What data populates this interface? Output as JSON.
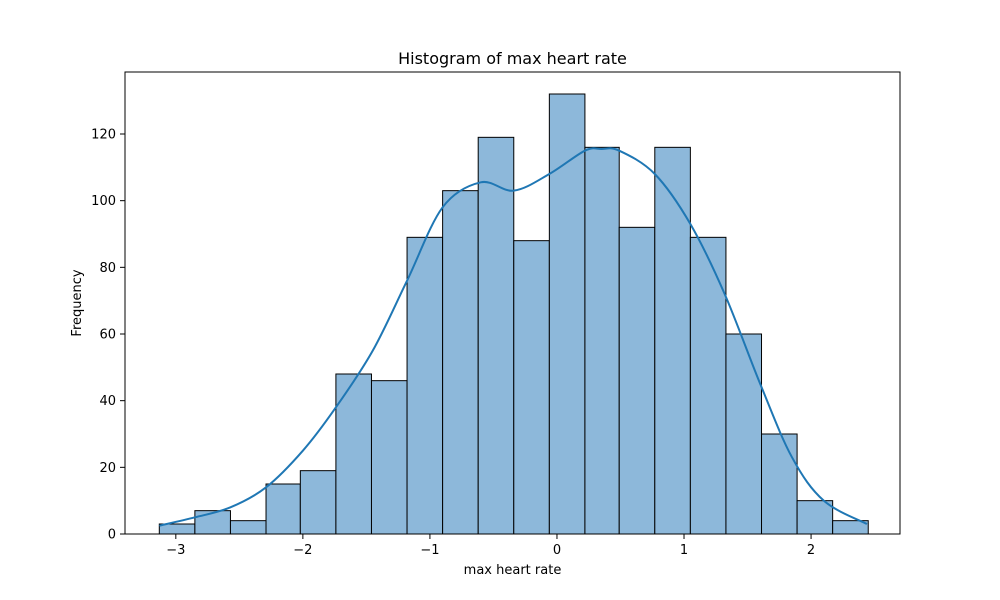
{
  "chart_data": {
    "type": "bar",
    "title": "Histogram of max heart rate",
    "xlabel": "max heart rate",
    "ylabel": "Frequency",
    "xlim": [
      -3.4,
      2.7
    ],
    "ylim": [
      0,
      138.6
    ],
    "bin_edges": [
      -3.13,
      -2.85,
      -2.57,
      -2.29,
      -2.02,
      -1.74,
      -1.46,
      -1.18,
      -0.9,
      -0.62,
      -0.34,
      -0.06,
      0.22,
      0.49,
      0.77,
      1.05,
      1.33,
      1.61,
      1.89,
      2.17,
      2.45
    ],
    "values": [
      3,
      7,
      4,
      15,
      19,
      48,
      46,
      89,
      103,
      119,
      88,
      132,
      116,
      92,
      116,
      89,
      60,
      30,
      10,
      4
    ],
    "x_ticks": [
      -3,
      -2,
      -1,
      0,
      1,
      2
    ],
    "x_tick_labels": [
      "−3",
      "−2",
      "−1",
      "0",
      "1",
      "2"
    ],
    "y_ticks": [
      0,
      20,
      40,
      60,
      80,
      100,
      120
    ],
    "y_tick_labels": [
      "0",
      "20",
      "40",
      "60",
      "80",
      "100",
      "120"
    ],
    "kde": {
      "x": [
        -3.13,
        -2.85,
        -2.57,
        -2.29,
        -2.0,
        -1.74,
        -1.45,
        -1.18,
        -0.9,
        -0.6,
        -0.34,
        -0.06,
        0.22,
        0.35,
        0.49,
        0.77,
        1.05,
        1.32,
        1.6,
        1.85,
        2.1,
        2.44
      ],
      "y": [
        2.5,
        5,
        8,
        14,
        25,
        38,
        55,
        76,
        98,
        105.5,
        103,
        108,
        115,
        115.5,
        115,
        108,
        93,
        72,
        45,
        23,
        10,
        3
      ]
    },
    "grid": false,
    "legend": "none",
    "colors": {
      "bar_fill": "#8db8da",
      "bar_edge": "#000000",
      "kde_line": "#1f77b4"
    }
  }
}
